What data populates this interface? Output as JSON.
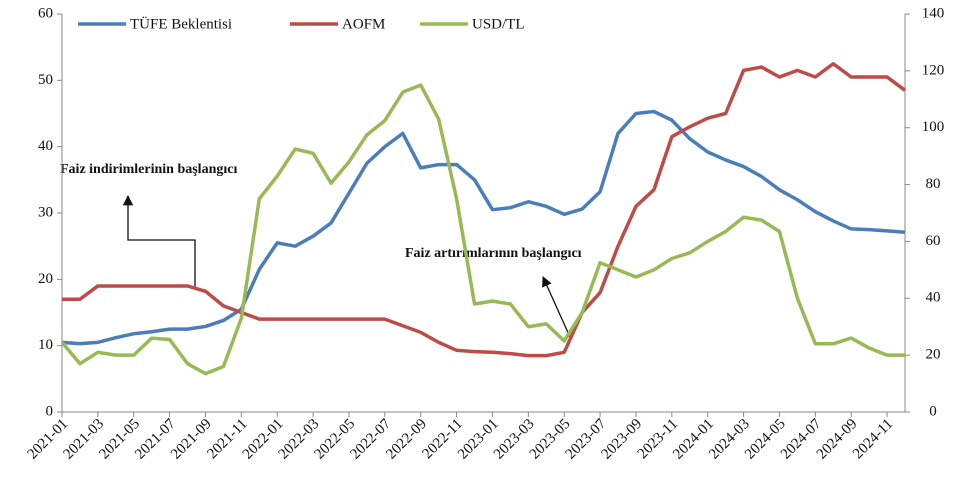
{
  "chart_data": {
    "type": "line",
    "categories": [
      "2021-01",
      null,
      "2021-03",
      null,
      "2021-05",
      null,
      "2021-07",
      null,
      "2021-09",
      null,
      "2021-11",
      null,
      "2022-01",
      null,
      "2022-03",
      null,
      "2022-05",
      null,
      "2022-07",
      null,
      "2022-09",
      null,
      "2022-11",
      null,
      "2023-01",
      null,
      "2023-03",
      null,
      "2023-05",
      null,
      "2023-07",
      null,
      "2023-09",
      null,
      "2023-11",
      null,
      "2024-01",
      null,
      "2024-03",
      null,
      "2024-05",
      null,
      "2024-07",
      null,
      "2024-09",
      null,
      "2024-11",
      null
    ],
    "series": [
      {
        "name": "TÜFE Beklentisi",
        "color": "#4a7ebb",
        "values": [
          10.5,
          10.3,
          10.5,
          11.2,
          11.8,
          12.1,
          12.5,
          12.5,
          12.9,
          13.8,
          15.5,
          21.5,
          25.5,
          25.0,
          26.5,
          28.5,
          33,
          37.5,
          40,
          42,
          36.8,
          37.3,
          37.3,
          35,
          30.5,
          30.8,
          31.7,
          31.0,
          29.8,
          30.6,
          33.2,
          42,
          45,
          45.3,
          44,
          41.2,
          39.2,
          38,
          37,
          35.5,
          33.5,
          32,
          30.2,
          28.8,
          27.6,
          27.5,
          27.3,
          27.1
        ]
      },
      {
        "name": "AOFM",
        "color": "#be4b48",
        "values": [
          17,
          17,
          19,
          19,
          19,
          19,
          19,
          19,
          18.2,
          16,
          15,
          14,
          14,
          14,
          14,
          14,
          14,
          14,
          14,
          13,
          12,
          10.5,
          9.3,
          9.1,
          9,
          8.8,
          8.5,
          8.5,
          9,
          15,
          18,
          25,
          31,
          33.5,
          41.5,
          43,
          44.3,
          45,
          51.5,
          52,
          50.5,
          51.5,
          50.5,
          52.5,
          50.5,
          50.5,
          50.5,
          48.5
        ]
      },
      {
        "name": "USD/TL",
        "color": "#98b954",
        "axis": "y2",
        "values": [
          24.5,
          17,
          21,
          20,
          20,
          26,
          25.5,
          17,
          13.5,
          16,
          33,
          75,
          83,
          92.5,
          91,
          80.5,
          88,
          97.5,
          102.5,
          112.5,
          115,
          103,
          75,
          38,
          39,
          38,
          30,
          31,
          25,
          35,
          52.5,
          50,
          47.5,
          50,
          54,
          56,
          60,
          63.5,
          68.5,
          67.5,
          63.5,
          40,
          24,
          24,
          26,
          22.5,
          20,
          20
        ]
      }
    ],
    "ylim": [
      0,
      60
    ],
    "yticks": [
      0,
      10,
      20,
      30,
      40,
      50,
      60
    ],
    "y2lim": [
      0,
      140
    ],
    "y2ticks": [
      0,
      20,
      40,
      60,
      80,
      100,
      120,
      140
    ],
    "annotations": [
      "Faiz indirimlerinin başlangıcı",
      "Faiz artırımlarının başlangıcı"
    ]
  }
}
